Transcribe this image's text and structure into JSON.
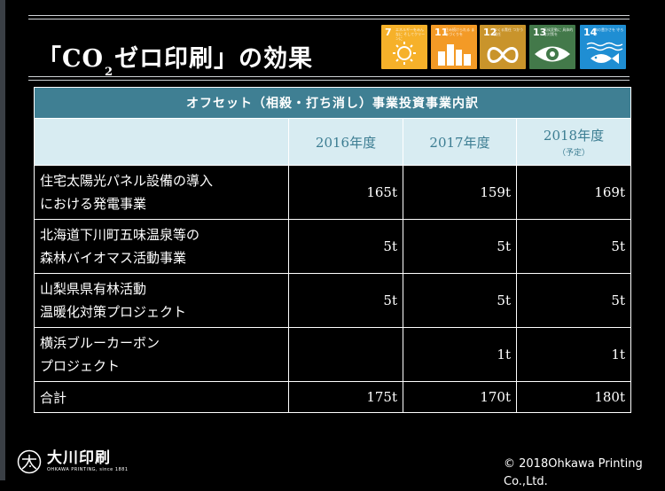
{
  "slide": {
    "title_pre": "「CO",
    "title_sub": "2",
    "title_post": "ゼロ印刷」の効果"
  },
  "sdgs": [
    {
      "number": "7",
      "text": "エネルギーをみんなに そしてクリーンに",
      "color": "#f6b12a",
      "icon": "sun-icon"
    },
    {
      "number": "11",
      "text": "住み続けられる まちづくりを",
      "color": "#f39a26",
      "icon": "city-icon"
    },
    {
      "number": "12",
      "text": "つくる責任 つかう責任",
      "color": "#c9942b",
      "icon": "infinity-icon"
    },
    {
      "number": "13",
      "text": "気候変動に 具体的な対策を",
      "color": "#43794a",
      "icon": "eye-globe-icon"
    },
    {
      "number": "14",
      "text": "海の豊かさを 守ろう",
      "color": "#1f8ed3",
      "icon": "fish-icon"
    }
  ],
  "table": {
    "caption": "オフセット（相殺・打ち消し）事業投資事業内訳",
    "columns": [
      {
        "label": "2016年度",
        "note": ""
      },
      {
        "label": "2017年度",
        "note": ""
      },
      {
        "label": "2018年度",
        "note": "（予定）"
      }
    ],
    "rows": [
      {
        "line1": "住宅太陽光パネル設備の導入",
        "line2": "における発電事業",
        "values": [
          "165t",
          "159t",
          "169t"
        ]
      },
      {
        "line1": "北海道下川町五味温泉等の",
        "line2": "森林バイオマス活動事業",
        "values": [
          "5t",
          "5t",
          "5t"
        ]
      },
      {
        "line1": "山梨県県有林活動",
        "line2": "温暖化対策プロジェクト",
        "values": [
          "5t",
          "5t",
          "5t"
        ]
      },
      {
        "line1": "横浜ブルーカーボン",
        "line2": "プロジェクト",
        "values": [
          "",
          "1t",
          "1t"
        ]
      }
    ],
    "total": {
      "label": "合計",
      "values": [
        "175t",
        "170t",
        "180t"
      ]
    }
  },
  "footer": {
    "logo_jp": "大川印刷",
    "logo_en": "OHKAWA PRINTING, since 1881",
    "copyright_line1": "© 2018Ohkawa Printing",
    "copyright_line2": "Co.,Ltd."
  }
}
